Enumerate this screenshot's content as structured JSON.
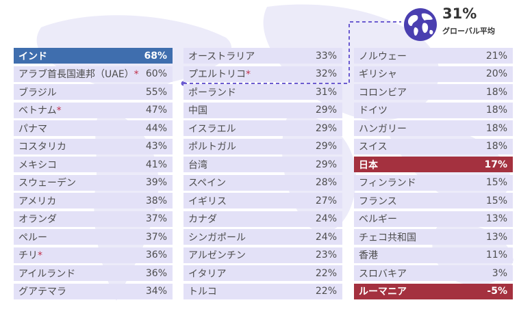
{
  "global_average": {
    "value": "31%",
    "label": "グローバル平均"
  },
  "colors": {
    "highlight_top": "#3f6eae",
    "highlight_bottom": "#a4313f",
    "row": "#e3e1f7",
    "asterisk": "#c0304a",
    "connector": "#6b5bd0"
  },
  "chart_data": {
    "type": "table",
    "columns": [
      [
        {
          "name": "インド",
          "value": "68%",
          "highlight": "top"
        },
        {
          "name": "アラブ首長国連邦（UAE）",
          "value": "60%",
          "asterisk": true
        },
        {
          "name": "ブラジル",
          "value": "55%"
        },
        {
          "name": "ベトナム",
          "value": "47%",
          "asterisk": true
        },
        {
          "name": "パナマ",
          "value": "44%"
        },
        {
          "name": "コスタリカ",
          "value": "43%"
        },
        {
          "name": "メキシコ",
          "value": "41%"
        },
        {
          "name": "スウェーデン",
          "value": "39%"
        },
        {
          "name": "アメリカ",
          "value": "38%"
        },
        {
          "name": "オランダ",
          "value": "37%"
        },
        {
          "name": "ペルー",
          "value": "37%"
        },
        {
          "name": "チリ",
          "value": "36%",
          "asterisk": true
        },
        {
          "name": "アイルランド",
          "value": "36%"
        },
        {
          "name": "グアテマラ",
          "value": "34%"
        }
      ],
      [
        {
          "name": "オーストラリア",
          "value": "33%"
        },
        {
          "name": "プエルトリコ",
          "value": "32%",
          "asterisk": true
        },
        {
          "name": "ポーランド",
          "value": "31%"
        },
        {
          "name": "中国",
          "value": "29%"
        },
        {
          "name": "イスラエル",
          "value": "29%"
        },
        {
          "name": "ポルトガル",
          "value": "29%"
        },
        {
          "name": "台湾",
          "value": "29%"
        },
        {
          "name": "スペイン",
          "value": "28%"
        },
        {
          "name": "イギリス",
          "value": "27%"
        },
        {
          "name": "カナダ",
          "value": "24%"
        },
        {
          "name": "シンガポール",
          "value": "24%"
        },
        {
          "name": "アルゼンチン",
          "value": "23%"
        },
        {
          "name": "イタリア",
          "value": "22%"
        },
        {
          "name": "トルコ",
          "value": "22%"
        }
      ],
      [
        {
          "name": "ノルウェー",
          "value": "21%"
        },
        {
          "name": "ギリシャ",
          "value": "20%"
        },
        {
          "name": "コロンビア",
          "value": "18%"
        },
        {
          "name": "ドイツ",
          "value": "18%"
        },
        {
          "name": "ハンガリー",
          "value": "18%"
        },
        {
          "name": "スイス",
          "value": "18%"
        },
        {
          "name": "日本",
          "value": "17%",
          "highlight": "bottom"
        },
        {
          "name": "フィンランド",
          "value": "15%"
        },
        {
          "name": "フランス",
          "value": "15%"
        },
        {
          "name": "ベルギー",
          "value": "13%"
        },
        {
          "name": "チェコ共和国",
          "value": "13%"
        },
        {
          "name": "香港",
          "value": "11%"
        },
        {
          "name": "スロバキア",
          "value": "3%"
        },
        {
          "name": "ルーマニア",
          "value": "-5%",
          "highlight": "bottom"
        }
      ]
    ]
  }
}
